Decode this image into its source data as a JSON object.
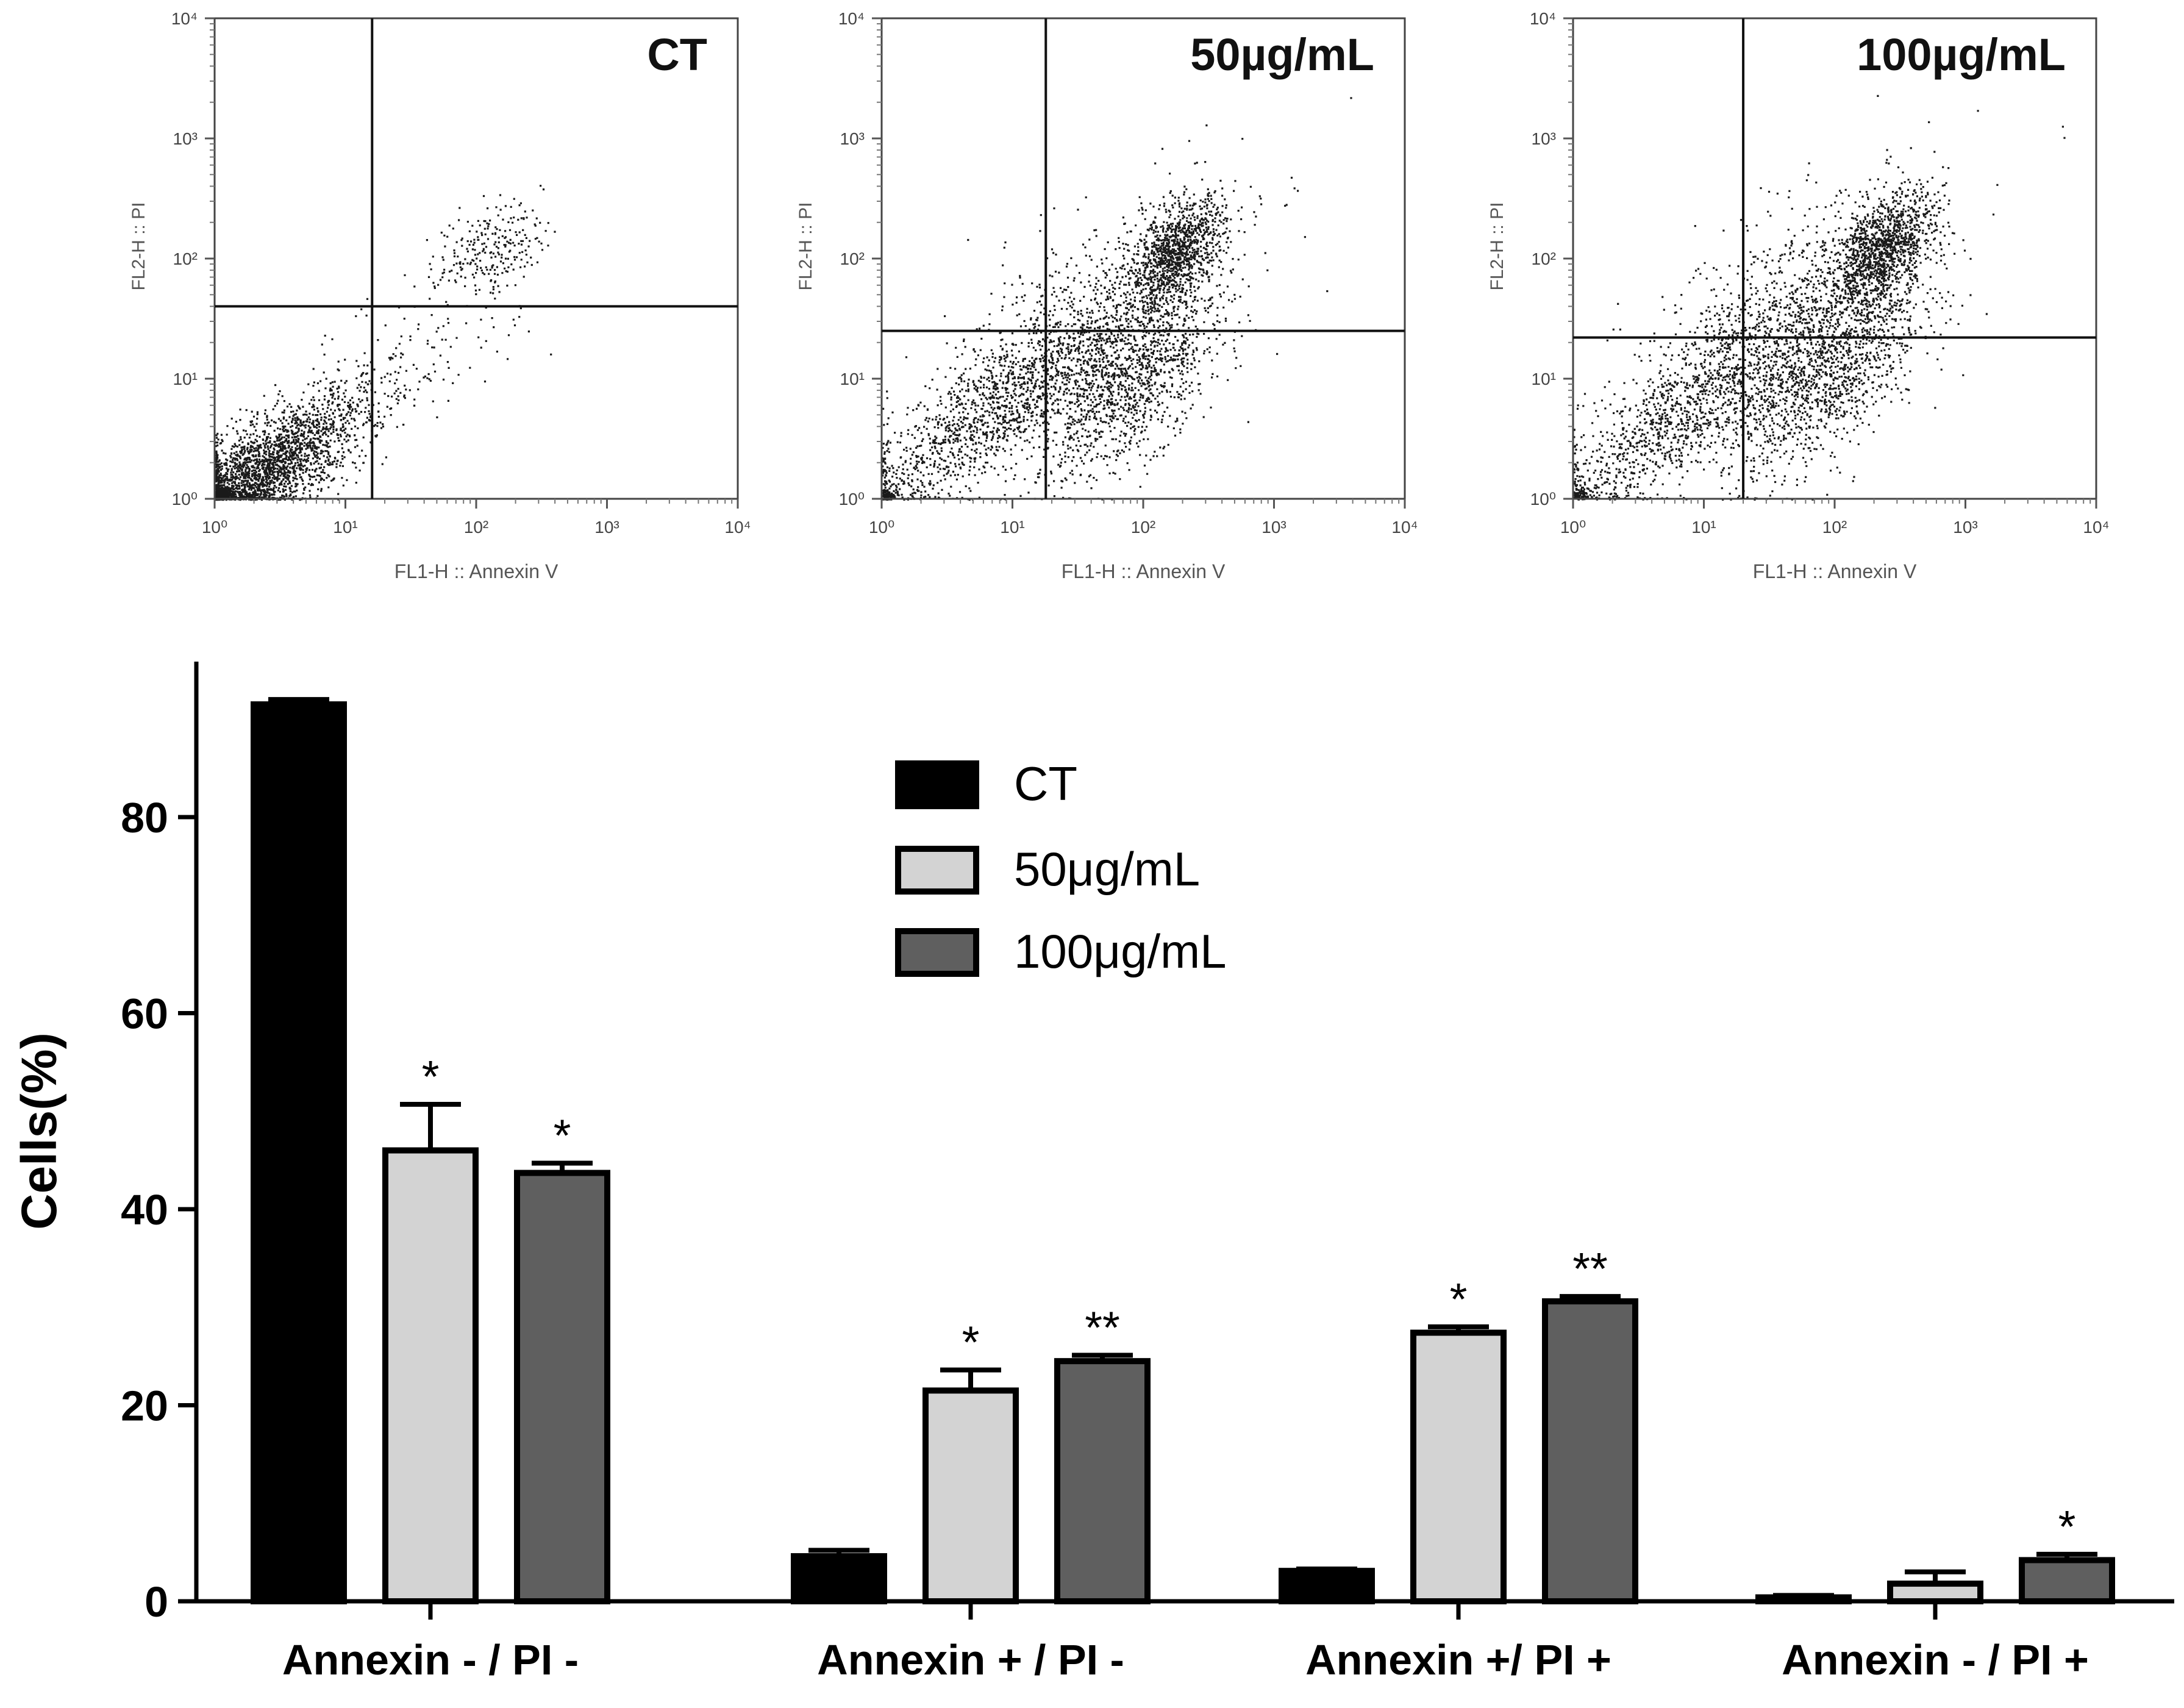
{
  "chart_data": [
    {
      "type": "scatter",
      "title": "CT",
      "xlabel": "FL1-H :: Annexin V",
      "ylabel": "FL2-H :: PI",
      "xscale": "log",
      "yscale": "log",
      "xlim": [
        1,
        10000
      ],
      "ylim": [
        1,
        10000
      ],
      "tick_labels": [
        "10⁰",
        "10¹",
        "10²",
        "10³",
        "10⁴"
      ],
      "gate": {
        "x": 16,
        "y": 40
      },
      "clusters": [
        {
          "cx": 0.35,
          "cy": 0.22,
          "sx": 0.4,
          "sy": 0.32,
          "n": 2600,
          "corr": 0.75
        },
        {
          "cx": 2.1,
          "cy": 2.1,
          "sx": 0.2,
          "sy": 0.18,
          "n": 240,
          "corr": 0.3
        },
        {
          "cx": 1.5,
          "cy": 1.2,
          "sx": 0.45,
          "sy": 0.35,
          "n": 160,
          "corr": 0.6
        }
      ]
    },
    {
      "type": "scatter",
      "title": "50µg/mL",
      "xlabel": "FL1-H :: Annexin V",
      "ylabel": "FL2-H :: PI",
      "xscale": "log",
      "yscale": "log",
      "xlim": [
        1,
        10000
      ],
      "ylim": [
        1,
        10000
      ],
      "tick_labels": [
        "10⁰",
        "10¹",
        "10²",
        "10³",
        "10⁴"
      ],
      "gate": {
        "x": 18,
        "y": 25
      },
      "clusters": [
        {
          "cx": 0.85,
          "cy": 0.75,
          "sx": 0.55,
          "sy": 0.5,
          "n": 1500,
          "corr": 0.85
        },
        {
          "cx": 1.9,
          "cy": 1.0,
          "sx": 0.35,
          "sy": 0.4,
          "n": 1300,
          "corr": 0.6
        },
        {
          "cx": 2.25,
          "cy": 2.05,
          "sx": 0.18,
          "sy": 0.22,
          "n": 1100,
          "corr": 0.5
        },
        {
          "cx": 1.6,
          "cy": 1.6,
          "sx": 0.6,
          "sy": 0.55,
          "n": 500,
          "corr": 0.7
        }
      ]
    },
    {
      "type": "scatter",
      "title": "100µg/mL",
      "xlabel": "FL1-H :: Annexin V",
      "ylabel": "FL2-H :: PI",
      "xscale": "log",
      "yscale": "log",
      "xlim": [
        1,
        10000
      ],
      "ylim": [
        1,
        10000
      ],
      "tick_labels": [
        "10⁰",
        "10¹",
        "10²",
        "10³",
        "10⁴"
      ],
      "gate": {
        "x": 20,
        "y": 22
      },
      "clusters": [
        {
          "cx": 0.8,
          "cy": 0.7,
          "sx": 0.55,
          "sy": 0.5,
          "n": 1200,
          "corr": 0.85
        },
        {
          "cx": 1.9,
          "cy": 1.05,
          "sx": 0.38,
          "sy": 0.42,
          "n": 1400,
          "corr": 0.6
        },
        {
          "cx": 2.35,
          "cy": 2.05,
          "sx": 0.2,
          "sy": 0.24,
          "n": 1300,
          "corr": 0.5
        },
        {
          "cx": 1.6,
          "cy": 1.6,
          "sx": 0.6,
          "sy": 0.55,
          "n": 700,
          "corr": 0.7
        }
      ]
    },
    {
      "type": "bar",
      "ylabel": "Cells(%)",
      "xlabel": "",
      "ylim": [
        0,
        96
      ],
      "yticks": [
        0,
        20,
        40,
        60,
        80
      ],
      "categories": [
        "Annexin - / PI -",
        "Annexin + / PI -",
        "Annexin +/ PI +",
        "Annexin - / PI +"
      ],
      "series": [
        {
          "name": "CT",
          "color": "#000000",
          "values": [
            91.5,
            4.6,
            3.1,
            0.4
          ],
          "errors": [
            0.5,
            0.6,
            0.2,
            0.2
          ],
          "sig": [
            "",
            "",
            "",
            ""
          ]
        },
        {
          "name": "50μg/mL",
          "color": "#d3d3d3",
          "values": [
            46.0,
            21.5,
            27.4,
            1.8
          ],
          "errors": [
            4.7,
            2.1,
            0.6,
            1.2
          ],
          "sig": [
            "*",
            "*",
            "*",
            ""
          ]
        },
        {
          "name": "100μg/mL",
          "color": "#5f5f5f",
          "values": [
            43.7,
            24.5,
            30.6,
            4.2
          ],
          "errors": [
            1.0,
            0.6,
            0.5,
            0.6
          ],
          "sig": [
            "*",
            "**",
            "**",
            "*"
          ]
        }
      ],
      "legend_position": "top-center"
    }
  ]
}
